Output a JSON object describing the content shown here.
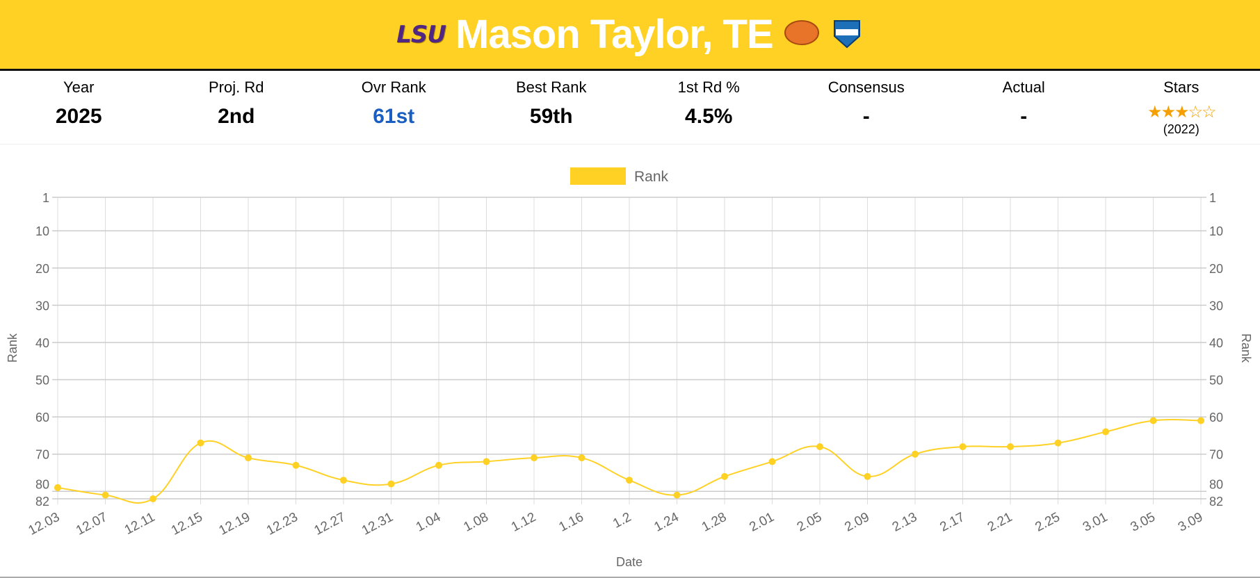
{
  "header": {
    "school": "LSU",
    "title": "Mason Taylor, TE",
    "badges": [
      "senior-bowl-badge",
      "nfl-combine-badge"
    ]
  },
  "stats": [
    {
      "label": "Year",
      "value": "2025"
    },
    {
      "label": "Proj. Rd",
      "value": "2nd"
    },
    {
      "label": "Ovr Rank",
      "value": "61st"
    },
    {
      "label": "Best Rank",
      "value": "59th"
    },
    {
      "label": "1st Rd %",
      "value": "4.5%"
    },
    {
      "label": "Consensus",
      "value": "-"
    },
    {
      "label": "Actual",
      "value": "-"
    },
    {
      "label": "Stars",
      "value": "★★★☆☆",
      "sub": "(2022)"
    }
  ],
  "colors": {
    "header": "#fed124",
    "line": "#fed124",
    "highlight": "#1a5ec2"
  },
  "chart_data": {
    "type": "line",
    "legend": [
      "Rank"
    ],
    "legend_position": "top",
    "xlabel": "Date",
    "ylabel": "Rank",
    "ylabel_right": "Rank",
    "ylim": [
      1,
      82
    ],
    "y_reversed": true,
    "yticks": [
      1,
      10,
      20,
      30,
      40,
      50,
      60,
      70,
      80,
      82
    ],
    "categories": [
      "12.03",
      "12.07",
      "12.11",
      "12.15",
      "12.19",
      "12.23",
      "12.27",
      "12.31",
      "1.04",
      "1.08",
      "1.12",
      "1.16",
      "1.2",
      "1.24",
      "1.28",
      "2.01",
      "2.05",
      "2.09",
      "2.13",
      "2.17",
      "2.21",
      "2.25",
      "3.01",
      "3.05",
      "3.09"
    ],
    "series": [
      {
        "name": "Rank",
        "values": [
          79,
          81,
          82,
          67,
          71,
          73,
          77,
          78,
          73,
          72,
          71,
          71,
          77,
          81,
          76,
          72,
          68,
          76,
          70,
          68,
          68,
          67,
          64,
          61,
          61
        ]
      }
    ],
    "grid": true
  }
}
